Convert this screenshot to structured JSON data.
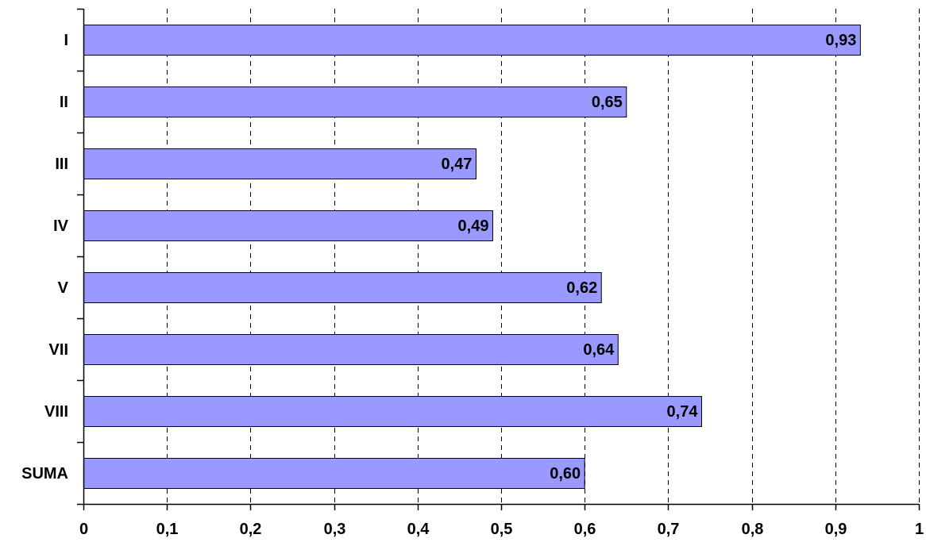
{
  "chart_data": {
    "type": "bar",
    "orientation": "horizontal",
    "categories": [
      "I",
      "II",
      "III",
      "IV",
      "V",
      "VII",
      "VIII",
      "SUMA"
    ],
    "values": [
      0.93,
      0.65,
      0.47,
      0.49,
      0.62,
      0.64,
      0.74,
      0.6
    ],
    "data_labels": [
      "0,93",
      "0,65",
      "0,47",
      "0,49",
      "0,62",
      "0,64",
      "0,74",
      "0,60"
    ],
    "x_ticks": [
      0,
      0.1,
      0.2,
      0.3,
      0.4,
      0.5,
      0.6,
      0.7,
      0.8,
      0.9,
      1
    ],
    "x_tick_labels": [
      "0",
      "0,1",
      "0,2",
      "0,3",
      "0,4",
      "0,5",
      "0,6",
      "0,7",
      "0,8",
      "0,9",
      "1"
    ],
    "xlim": [
      0,
      1
    ],
    "title": "",
    "xlabel": "",
    "ylabel": "",
    "grid": "vertical-dashed",
    "legend": "none",
    "colors": {
      "bar_fill": "#9999ff",
      "bar_stroke": "#000000",
      "grid": "#000000",
      "axis": "#000000"
    }
  }
}
